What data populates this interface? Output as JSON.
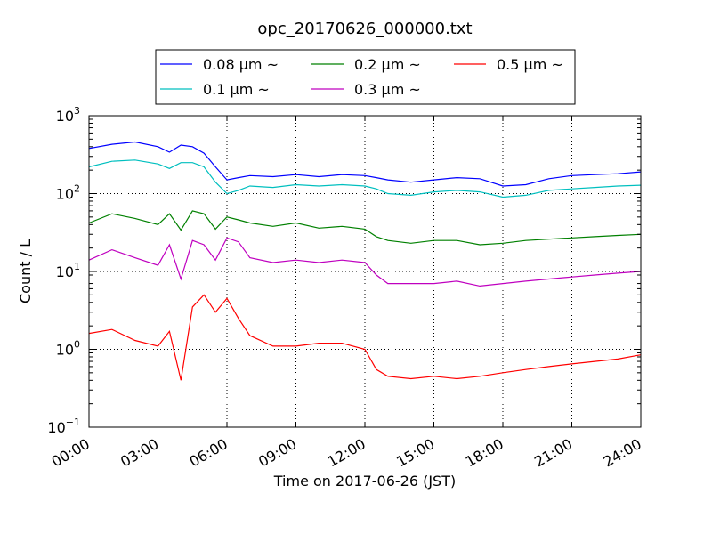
{
  "chart_data": {
    "type": "line",
    "title": "opc_20170626_000000.txt",
    "xlabel": "Time on 2017-06-26 (JST)",
    "ylabel": "Count / L",
    "yscale": "log",
    "xlim": [
      "00:00",
      "24:00"
    ],
    "ylim": [
      0.1,
      1000
    ],
    "grid": true,
    "legend_position": "top-center",
    "x_ticks": [
      "00:00",
      "03:00",
      "06:00",
      "09:00",
      "12:00",
      "15:00",
      "18:00",
      "21:00",
      "24:00"
    ],
    "y_ticks": [
      {
        "value": 0.1,
        "base": "10",
        "exp": "−1"
      },
      {
        "value": 1,
        "base": "10",
        "exp": "0"
      },
      {
        "value": 10,
        "base": "10",
        "exp": "1"
      },
      {
        "value": 100,
        "base": "10",
        "exp": "2"
      },
      {
        "value": 1000,
        "base": "10",
        "exp": "3"
      }
    ],
    "x": [
      "00:00",
      "01:00",
      "02:00",
      "03:00",
      "03:30",
      "04:00",
      "04:30",
      "05:00",
      "05:30",
      "06:00",
      "06:30",
      "07:00",
      "08:00",
      "09:00",
      "10:00",
      "11:00",
      "12:00",
      "12:30",
      "13:00",
      "14:00",
      "15:00",
      "16:00",
      "17:00",
      "18:00",
      "19:00",
      "20:00",
      "21:00",
      "22:00",
      "23:00",
      "24:00"
    ],
    "series": [
      {
        "name": "0.08 μm ~",
        "color": "#0000ff",
        "values": [
          380,
          430,
          460,
          400,
          340,
          420,
          400,
          330,
          220,
          150,
          160,
          170,
          165,
          175,
          165,
          175,
          170,
          160,
          150,
          140,
          150,
          160,
          155,
          125,
          130,
          155,
          170,
          175,
          180,
          190
        ]
      },
      {
        "name": "0.1 μm ~",
        "color": "#00bfbf",
        "values": [
          220,
          260,
          270,
          240,
          210,
          250,
          250,
          220,
          140,
          100,
          110,
          125,
          120,
          130,
          125,
          130,
          125,
          115,
          100,
          95,
          105,
          110,
          105,
          90,
          95,
          110,
          115,
          120,
          125,
          128
        ]
      },
      {
        "name": "0.2 μm ~",
        "color": "#008000",
        "values": [
          42,
          55,
          48,
          40,
          55,
          34,
          60,
          55,
          35,
          50,
          46,
          42,
          38,
          42,
          36,
          38,
          35,
          28,
          25,
          23,
          25,
          25,
          22,
          23,
          25,
          26,
          27,
          28,
          29,
          30
        ]
      },
      {
        "name": "0.3 μm ~",
        "color": "#bf00bf",
        "values": [
          14,
          19,
          15,
          12,
          22,
          8,
          25,
          22,
          14,
          27,
          24,
          15,
          13,
          14,
          13,
          14,
          13,
          9,
          7,
          7,
          7,
          7.5,
          6.5,
          7,
          7.5,
          8,
          8.5,
          9,
          9.5,
          10
        ]
      },
      {
        "name": "0.5 μm ~",
        "color": "#ff0000",
        "values": [
          1.6,
          1.8,
          1.3,
          1.1,
          1.7,
          0.4,
          3.5,
          5.0,
          3.0,
          4.5,
          2.5,
          1.5,
          1.1,
          1.1,
          1.2,
          1.2,
          1.0,
          0.55,
          0.45,
          0.42,
          0.45,
          0.42,
          0.45,
          0.5,
          0.55,
          0.6,
          0.65,
          0.7,
          0.75,
          0.85
        ]
      }
    ]
  }
}
